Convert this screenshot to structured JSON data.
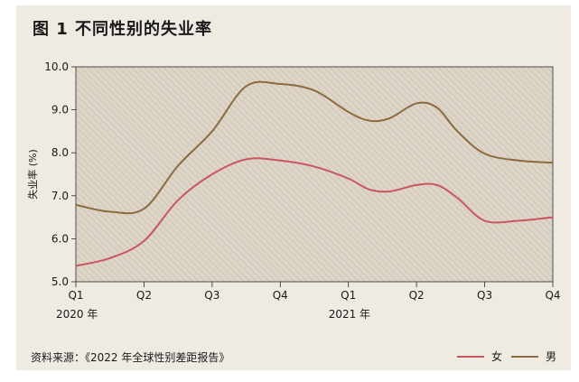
{
  "title": "图 1  不同性别的失业率",
  "source": "资料来源：《2022 年全球性别差距报告》",
  "chart_data": {
    "type": "line",
    "title": "图 1  不同性别的失业率",
    "ylabel": "失业率 (%)",
    "xlabel": "",
    "ylim": [
      5.0,
      10.0
    ],
    "yticks": [
      "5.0",
      "6.0",
      "7.0",
      "8.0",
      "9.0",
      "10.0"
    ],
    "categories": [
      "Q1",
      "Q2",
      "Q3",
      "Q4",
      "Q1",
      "Q2",
      "Q3",
      "Q4"
    ],
    "year_labels": [
      "2020 年",
      "2021 年"
    ],
    "grid": false,
    "legend_position": "bottom-right",
    "series": [
      {
        "name": "女",
        "color": "#c9555f",
        "x": [
          0,
          0.5,
          1,
          1.5,
          2,
          2.5,
          3,
          3.5,
          4,
          4.3,
          4.6,
          5,
          5.3,
          5.6,
          6,
          6.5,
          7
        ],
        "values": [
          5.37,
          5.55,
          5.95,
          6.9,
          7.5,
          7.85,
          7.82,
          7.68,
          7.4,
          7.15,
          7.1,
          7.25,
          7.25,
          6.95,
          6.42,
          6.42,
          6.5
        ]
      },
      {
        "name": "男",
        "color": "#8b6a3f",
        "x": [
          0,
          0.5,
          1,
          1.5,
          2,
          2.5,
          3,
          3.5,
          4,
          4.3,
          4.6,
          5,
          5.3,
          5.6,
          6,
          6.5,
          7
        ],
        "values": [
          6.79,
          6.63,
          6.7,
          7.7,
          8.5,
          9.55,
          9.6,
          9.45,
          8.95,
          8.75,
          8.8,
          9.15,
          9.05,
          8.5,
          7.98,
          7.82,
          7.77
        ]
      }
    ]
  }
}
